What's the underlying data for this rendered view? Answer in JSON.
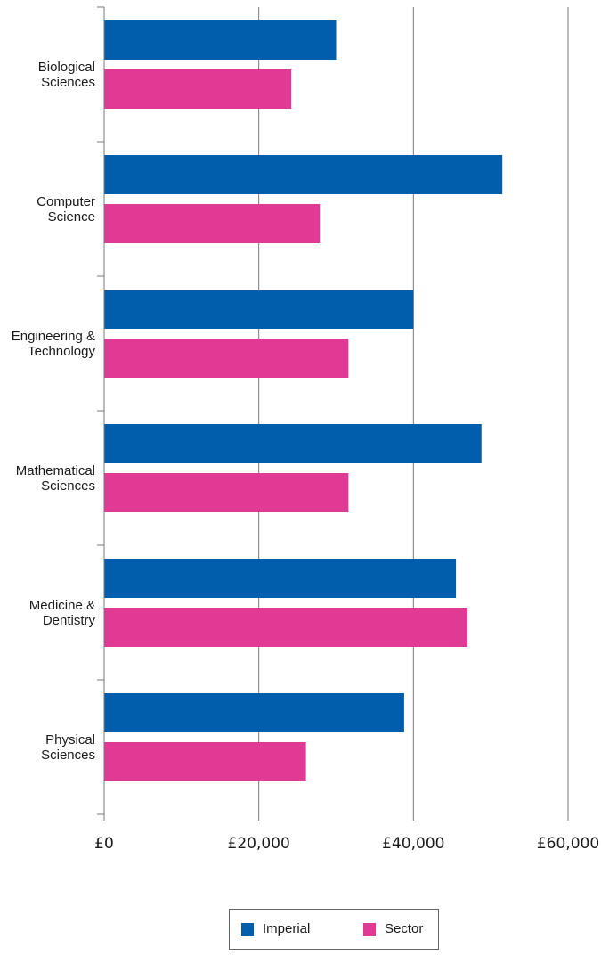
{
  "chart_data": {
    "type": "bar",
    "orientation": "horizontal",
    "categories": [
      [
        "Biological",
        "Sciences"
      ],
      [
        "Computer",
        "Science"
      ],
      [
        "Engineering &",
        "Technology"
      ],
      [
        "Mathematical",
        "Sciences"
      ],
      [
        "Medicine &",
        "Dentistry"
      ],
      [
        "Physical",
        "Sciences"
      ]
    ],
    "series": [
      {
        "name": "Imperial",
        "color": "#005ead",
        "values": [
          30000,
          51500,
          40000,
          48800,
          45500,
          38800
        ]
      },
      {
        "name": "Sector",
        "color": "#e03a95",
        "values": [
          24200,
          27900,
          31600,
          31600,
          47000,
          26100
        ]
      }
    ],
    "xlim": [
      0,
      60000
    ],
    "xticks": [
      0,
      20000,
      40000,
      60000
    ],
    "xtick_labels": [
      "£0",
      "£20,000",
      "£40,000",
      "£60,000"
    ],
    "grid": true,
    "legend_position": "bottom"
  }
}
